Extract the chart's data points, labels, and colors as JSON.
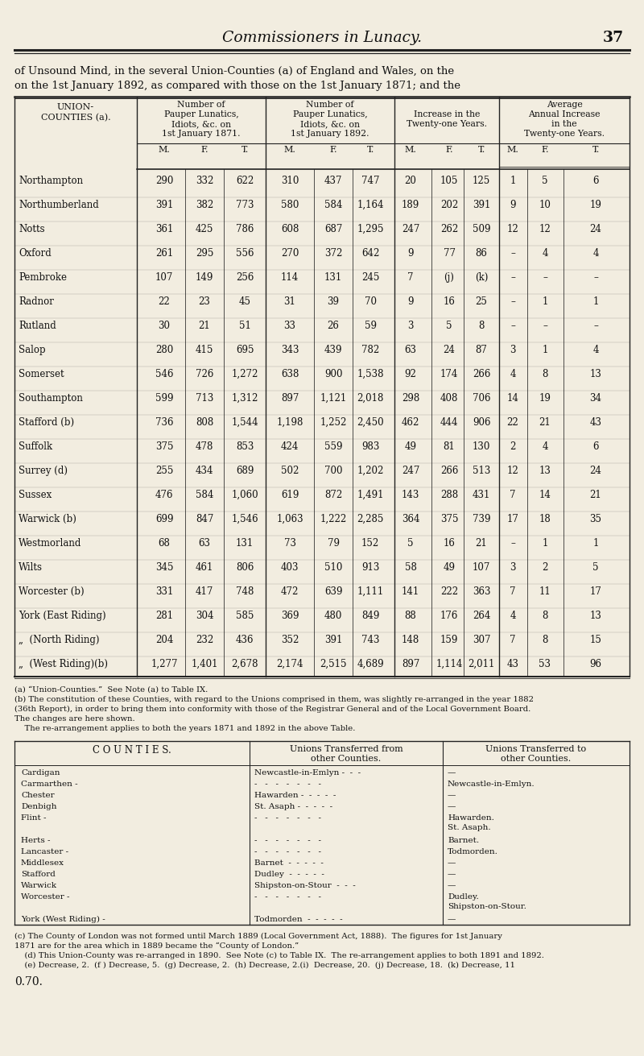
{
  "page_title": "Commissioners in Lunacy.",
  "page_number": "37",
  "intro_text_line1": "of Unsound Mind, in the several Union-Counties (a) of England and Wales, on the",
  "intro_text_line2": "on the 1st January 1892, as compared with those on the 1st January 1871; and the",
  "rows": [
    [
      "Northampton",
      "290",
      "332",
      "622",
      "310",
      "437",
      "747",
      "20",
      "105",
      "125",
      "1",
      "5",
      "6"
    ],
    [
      "Northumberland",
      "391",
      "382",
      "773",
      "580",
      "584",
      "1,164",
      "189",
      "202",
      "391",
      "9",
      "10",
      "19"
    ],
    [
      "Notts",
      "361",
      "425",
      "786",
      "608",
      "687",
      "1,295",
      "247",
      "262",
      "509",
      "12",
      "12",
      "24"
    ],
    [
      "Oxford",
      "261",
      "295",
      "556",
      "270",
      "372",
      "642",
      "9",
      "77",
      "86",
      "–",
      "4",
      "4"
    ],
    [
      "Pembroke",
      "107",
      "149",
      "256",
      "114",
      "131",
      "245",
      "7",
      "(j)",
      "(k)",
      "–",
      "–",
      "–"
    ],
    [
      "Radnor",
      "22",
      "23",
      "45",
      "31",
      "39",
      "70",
      "9",
      "16",
      "25",
      "–",
      "1",
      "1"
    ],
    [
      "Rutland",
      "30",
      "21",
      "51",
      "33",
      "26",
      "59",
      "3",
      "5",
      "8",
      "–",
      "–",
      "–"
    ],
    [
      "Salop",
      "280",
      "415",
      "695",
      "343",
      "439",
      "782",
      "63",
      "24",
      "87",
      "3",
      "1",
      "4"
    ],
    [
      "Somerset",
      "546",
      "726",
      "1,272",
      "638",
      "900",
      "1,538",
      "92",
      "174",
      "266",
      "4",
      "8",
      "13"
    ],
    [
      "Southampton",
      "599",
      "713",
      "1,312",
      "897",
      "1,121",
      "2,018",
      "298",
      "408",
      "706",
      "14",
      "19",
      "34"
    ],
    [
      "Stafford (b)",
      "736",
      "808",
      "1,544",
      "1,198",
      "1,252",
      "2,450",
      "462",
      "444",
      "906",
      "22",
      "21",
      "43"
    ],
    [
      "Suffolk",
      "375",
      "478",
      "853",
      "424",
      "559",
      "983",
      "49",
      "81",
      "130",
      "2",
      "4",
      "6"
    ],
    [
      "Surrey (d)",
      "255",
      "434",
      "689",
      "502",
      "700",
      "1,202",
      "247",
      "266",
      "513",
      "12",
      "13",
      "24"
    ],
    [
      "Sussex",
      "476",
      "584",
      "1,060",
      "619",
      "872",
      "1,491",
      "143",
      "288",
      "431",
      "7",
      "14",
      "21"
    ],
    [
      "Warwick (b)",
      "699",
      "847",
      "1,546",
      "1,063",
      "1,222",
      "2,285",
      "364",
      "375",
      "739",
      "17",
      "18",
      "35"
    ],
    [
      "Westmorland",
      "68",
      "63",
      "131",
      "73",
      "79",
      "152",
      "5",
      "16",
      "21",
      "–",
      "1",
      "1"
    ],
    [
      "Wilts",
      "345",
      "461",
      "806",
      "403",
      "510",
      "913",
      "58",
      "49",
      "107",
      "3",
      "2",
      "5"
    ],
    [
      "Worcester (b)",
      "331",
      "417",
      "748",
      "472",
      "639",
      "1,111",
      "141",
      "222",
      "363",
      "7",
      "11",
      "17"
    ],
    [
      "York (East Riding)",
      "281",
      "304",
      "585",
      "369",
      "480",
      "849",
      "88",
      "176",
      "264",
      "4",
      "8",
      "13"
    ],
    [
      "„  (North Riding)",
      "204",
      "232",
      "436",
      "352",
      "391",
      "743",
      "148",
      "159",
      "307",
      "7",
      "8",
      "15"
    ],
    [
      "„  (West Riding)(b)",
      "1,277",
      "1,401",
      "2,678",
      "2,174",
      "2,515",
      "4,689",
      "897",
      "1,114",
      "2,011",
      "43",
      "53",
      "96"
    ]
  ],
  "footnotes_main": [
    "(a) “Union-Counties.”  See Note (a) to Table IX.",
    "(b) The constitution of these Counties, with regard to the Unions comprised in them, was slightly re-arranged in the year 1882",
    "(36th Report), in order to bring them into conformity with those of the Registrar General and of the Local Government Board.",
    "The changes are here shown.",
    "    The re-arrangement applies to both the years 1871 and 1892 in the above Table."
  ],
  "counties_rows": [
    [
      "Cardigan",
      "Newcastle-in-Emlyn -  -  -",
      "—"
    ],
    [
      "Carmarthen -",
      "-   -   -   -   -   -   -",
      "Newcastle-in-Emlyn."
    ],
    [
      "Chester",
      "Hawarden -  -  -  -  -",
      "—"
    ],
    [
      "Denbigh",
      "St. Asaph -  -  -  -  -",
      "—"
    ],
    [
      "Flint -",
      "-   -   -   -   -   -   -",
      "Hawarden.\nSt. Asaph."
    ],
    [
      "Herts -",
      "-   -   -   -   -   -   -",
      "Barnet."
    ],
    [
      "Lancaster -",
      "-   -   -   -   -   -   -",
      "Todmorden."
    ],
    [
      "Middlesex",
      "Barnet  -  -  -  -  -",
      "—"
    ],
    [
      "Stafford",
      "Dudley  -  -  -  -  -",
      "—"
    ],
    [
      "Warwick",
      "Shipston-on-Stour  -  -  -",
      "—"
    ],
    [
      "Worcester -",
      "-   -   -   -   -   -   -",
      "Dudley.\nShipston-on-Stour."
    ],
    [
      "York (West Riding) -",
      "Todmorden  -  -  -  -  -",
      "—"
    ]
  ],
  "footnotes_bottom": [
    "(c) The County of London was not formed until March 1889 (Local Government Act, 1888).  The figures for 1st January",
    "1871 are for the area which in 1889 became the “County of London.”",
    "    (d) This Union-County was re-arranged in 1890.  See Note (c) to Table IX.  The re-arrangement applies to both 1891 and 1892.",
    "    (e) Decrease, 2.  (f ) Decrease, 5.  (g) Decrease, 2.  (h) Decrease, 2.(i)  Decrease, 20.  (j) Decrease, 18.  (k) Decrease, 11"
  ],
  "last_line": "0.70.",
  "bg_color": "#f2ede0",
  "text_color": "#111111",
  "line_color": "#222222"
}
